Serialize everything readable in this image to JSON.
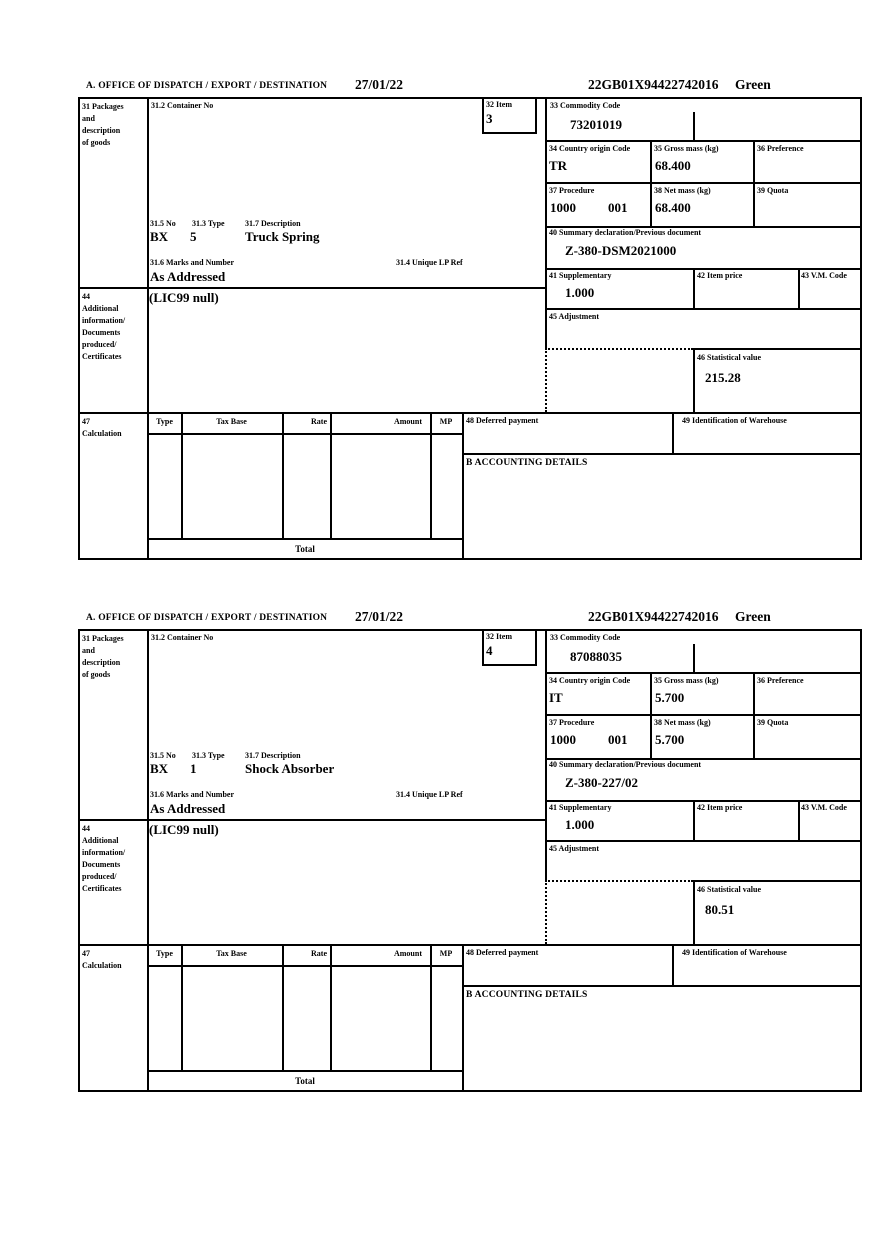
{
  "labels": {
    "office": "A.  OFFICE OF DISPATCH / EXPORT / DESTINATION",
    "b31": [
      "31 Packages",
      "and",
      "description",
      "of goods"
    ],
    "b31_2": "31.2 Container No",
    "b32": "32 Item",
    "b33": "33 Commodity Code",
    "b34": "34 Country origin Code",
    "b35": "35 Gross mass (kg)",
    "b36": "36 Preference",
    "b37": "37 Procedure",
    "b38": "38 Net mass (kg)",
    "b39": "39 Quota",
    "b31_5": "31.5 No",
    "b31_3": "31.3 Type",
    "b31_7": "31.7 Description",
    "b31_6": "31.6 Marks and Number",
    "b31_4": "31.4 Unique LP Ref",
    "b40": "40 Summary declaration/Previous document",
    "b41": "41 Supplementary",
    "b42": "42 Item price",
    "b43": "43 V.M. Code",
    "b44": [
      "44",
      "Additional",
      "information/",
      "Documents",
      "produced/",
      "Certificates"
    ],
    "b45": "45 Adjustment",
    "b46": "46 Statistical value",
    "b47": [
      "47",
      "Calculation"
    ],
    "calc_columns": [
      "Type",
      "Tax Base",
      "Rate",
      "Amount",
      "MP"
    ],
    "total": "Total",
    "b48": "48 Deferred payment",
    "b49": "49 Identification of Warehouse",
    "bB": "B ACCOUNTING DETAILS"
  },
  "items": [
    {
      "date": "27/01/22",
      "reference": "22GB01X94422742016",
      "routing": "Green",
      "item_no": "3",
      "commodity_code": "73201019",
      "country_origin": "TR",
      "gross_mass": "68.400",
      "procedure": "1000",
      "procedure_extra": "001",
      "net_mass": "68.400",
      "package_count": "BX",
      "package_type": "5",
      "description": "Truck Spring",
      "marks_and_number": "As Addressed",
      "previous_document": "Z-380-DSM2021000",
      "supplementary": "1.000",
      "additional_information": "(LIC99 null)",
      "statistical_value": "215.28"
    },
    {
      "date": "27/01/22",
      "reference": "22GB01X94422742016",
      "routing": "Green",
      "item_no": "4",
      "commodity_code": "87088035",
      "country_origin": "IT",
      "gross_mass": "5.700",
      "procedure": "1000",
      "procedure_extra": "001",
      "net_mass": "5.700",
      "package_count": "BX",
      "package_type": "1",
      "description": "Shock Absorber",
      "marks_and_number": "As Addressed",
      "previous_document": "Z-380-227/02",
      "supplementary": "1.000",
      "additional_information": "(LIC99 null)",
      "statistical_value": "80.51"
    }
  ]
}
